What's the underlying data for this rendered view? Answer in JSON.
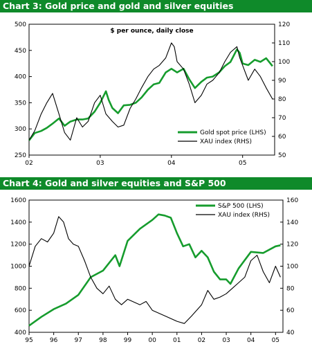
{
  "colors": {
    "band": "#0f8a2a",
    "gold_series": "#169c2d",
    "xau_series": "#000000"
  },
  "chart_data": [
    {
      "type": "line",
      "title": "Chart 3: Gold price and gold and silver equities",
      "subtitle": "$ per ounce, daily close",
      "x_ticks": [
        "02",
        "03",
        "04",
        "05"
      ],
      "xlim": [
        2002.0,
        2005.45
      ],
      "y_left": {
        "lim": [
          250,
          500
        ],
        "ticks": [
          "250",
          "300",
          "350",
          "400",
          "450",
          "500"
        ]
      },
      "y_right": {
        "lim": [
          50,
          120
        ],
        "ticks": [
          "50",
          "60",
          "70",
          "80",
          "90",
          "100",
          "110",
          "120"
        ]
      },
      "legend_position": "bottom-right",
      "series": [
        {
          "name": "Gold spot price (LHS)",
          "axis": "left",
          "x": [
            2002.0,
            2002.08,
            2002.17,
            2002.25,
            2002.33,
            2002.42,
            2002.5,
            2002.58,
            2002.67,
            2002.75,
            2002.83,
            2002.92,
            2003.0,
            2003.08,
            2003.12,
            2003.17,
            2003.25,
            2003.33,
            2003.42,
            2003.5,
            2003.58,
            2003.67,
            2003.75,
            2003.83,
            2003.92,
            2004.0,
            2004.08,
            2004.17,
            2004.25,
            2004.33,
            2004.42,
            2004.5,
            2004.58,
            2004.67,
            2004.75,
            2004.83,
            2004.92,
            2004.96,
            2005.0,
            2005.08,
            2005.17,
            2005.25,
            2005.33,
            2005.42
          ],
          "values": [
            278,
            292,
            296,
            302,
            310,
            320,
            306,
            314,
            318,
            318,
            320,
            333,
            350,
            372,
            355,
            340,
            330,
            345,
            346,
            350,
            360,
            375,
            385,
            388,
            408,
            415,
            408,
            415,
            395,
            378,
            390,
            398,
            400,
            408,
            420,
            428,
            452,
            445,
            425,
            422,
            432,
            428,
            435,
            420
          ]
        },
        {
          "name": "XAU index (RHS)",
          "axis": "right",
          "x": [
            2002.0,
            2002.08,
            2002.17,
            2002.25,
            2002.33,
            2002.42,
            2002.5,
            2002.58,
            2002.67,
            2002.75,
            2002.83,
            2002.92,
            2003.0,
            2003.08,
            2003.17,
            2003.25,
            2003.33,
            2003.42,
            2003.5,
            2003.58,
            2003.67,
            2003.75,
            2003.83,
            2003.92,
            2004.0,
            2004.04,
            2004.08,
            2004.17,
            2004.25,
            2004.33,
            2004.42,
            2004.5,
            2004.58,
            2004.67,
            2004.75,
            2004.83,
            2004.92,
            2004.96,
            2005.0,
            2005.08,
            2005.17,
            2005.25,
            2005.33,
            2005.42
          ],
          "values": [
            58,
            63,
            72,
            78,
            83,
            72,
            62,
            58,
            70,
            65,
            68,
            78,
            82,
            72,
            68,
            65,
            66,
            75,
            80,
            86,
            92,
            96,
            98,
            102,
            110,
            108,
            100,
            96,
            88,
            78,
            82,
            88,
            90,
            94,
            100,
            105,
            108,
            102,
            98,
            90,
            96,
            92,
            86,
            80
          ]
        }
      ]
    },
    {
      "type": "line",
      "title": "Chart 4: Gold and silver equities and S&P 500",
      "x_ticks": [
        "95",
        "96",
        "97",
        "98",
        "99",
        "00",
        "01",
        "02",
        "03",
        "04",
        "05"
      ],
      "xlim": [
        1995.0,
        2005.3
      ],
      "y_left": {
        "lim": [
          400,
          1600
        ],
        "ticks": [
          "400",
          "600",
          "800",
          "1000",
          "1200",
          "1400",
          "1600"
        ]
      },
      "y_right": {
        "lim": [
          40,
          160
        ],
        "ticks": [
          "40",
          "60",
          "80",
          "100",
          "120",
          "140",
          "160"
        ]
      },
      "legend_position": "top-right",
      "series": [
        {
          "name": "S&P 500 (LHS)",
          "axis": "left",
          "x": [
            1995.0,
            1995.5,
            1996.0,
            1996.5,
            1997.0,
            1997.5,
            1998.0,
            1998.5,
            1998.67,
            1999.0,
            1999.5,
            2000.0,
            2000.25,
            2000.5,
            2000.75,
            2001.0,
            2001.25,
            2001.5,
            2001.75,
            2002.0,
            2002.25,
            2002.5,
            2002.75,
            2003.0,
            2003.17,
            2003.5,
            2004.0,
            2004.5,
            2005.0,
            2005.2
          ],
          "values": [
            460,
            540,
            610,
            660,
            740,
            900,
            960,
            1100,
            1000,
            1230,
            1340,
            1420,
            1470,
            1460,
            1440,
            1300,
            1180,
            1200,
            1080,
            1140,
            1080,
            950,
            880,
            880,
            840,
            980,
            1130,
            1120,
            1180,
            1190
          ]
        },
        {
          "name": "XAU index (RHS)",
          "axis": "right",
          "x": [
            1995.0,
            1995.25,
            1995.5,
            1995.75,
            1996.0,
            1996.2,
            1996.4,
            1996.6,
            1996.8,
            1997.0,
            1997.25,
            1997.5,
            1997.75,
            1998.0,
            1998.25,
            1998.5,
            1998.75,
            1999.0,
            1999.5,
            1999.75,
            2000.0,
            2000.5,
            2001.0,
            2001.3,
            2001.6,
            2002.0,
            2002.25,
            2002.5,
            2002.75,
            2003.0,
            2003.25,
            2003.5,
            2003.75,
            2004.0,
            2004.25,
            2004.5,
            2004.75,
            2005.0,
            2005.2
          ],
          "values": [
            100,
            118,
            125,
            122,
            130,
            145,
            140,
            125,
            120,
            118,
            105,
            90,
            80,
            75,
            82,
            70,
            65,
            70,
            65,
            68,
            60,
            55,
            50,
            48,
            55,
            65,
            78,
            70,
            72,
            75,
            80,
            85,
            90,
            105,
            110,
            95,
            85,
            100,
            90
          ]
        }
      ]
    }
  ]
}
